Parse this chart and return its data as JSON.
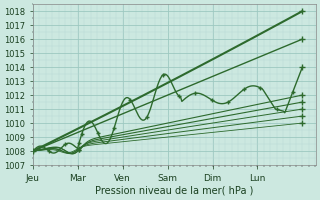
{
  "xlabel": "Pression niveau de la mer( hPa )",
  "bg_color": "#cce8e0",
  "grid_major_color": "#9dc8c0",
  "grid_minor_color": "#b8d8d4",
  "line_color": "#2d6a2d",
  "ylim": [
    1007,
    1018.5
  ],
  "yticks": [
    1007,
    1008,
    1009,
    1010,
    1011,
    1012,
    1013,
    1014,
    1015,
    1016,
    1017,
    1018
  ],
  "day_labels": [
    "Jeu",
    "Mar",
    "Ven",
    "Sam",
    "Dim",
    "Lun"
  ],
  "day_x": [
    0.0,
    0.167,
    0.333,
    0.5,
    0.667,
    0.833
  ],
  "xlim": [
    0.0,
    1.05
  ]
}
